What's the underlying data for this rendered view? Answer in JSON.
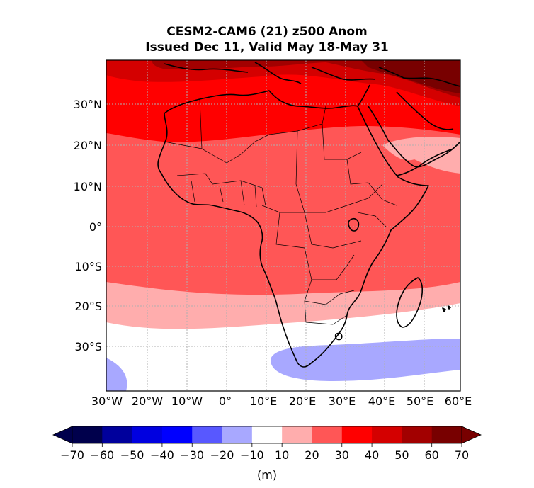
{
  "title_line1": "CESM2-CAM6 (21) z500 Anom",
  "title_line2": "Issued Dec 11, Valid May 18-May 31",
  "lat_labels": [
    "30°N",
    "20°N",
    "10°N",
    "0°",
    "10°S",
    "20°S",
    "30°S"
  ],
  "lon_labels": [
    "30°W",
    "20°W",
    "10°W",
    "0°",
    "10°E",
    "20°E",
    "30°E",
    "40°E",
    "50°E",
    "60°E"
  ],
  "colorbar": {
    "ticks": [
      "−70",
      "−60",
      "−50",
      "−40",
      "−30",
      "−20",
      "−10",
      "10",
      "20",
      "30",
      "40",
      "50",
      "60",
      "70"
    ],
    "colors": [
      "#00004c",
      "#00009c",
      "#0000e0",
      "#0000ff",
      "#5858ff",
      "#a8a8ff",
      "#ffffff",
      "#ffadad",
      "#ff5656",
      "#ff0000",
      "#d40000",
      "#a20000",
      "#780000"
    ],
    "under_color": "#00004c",
    "over_color": "#780000",
    "unit_label": "(m)"
  },
  "map_colors": {
    "c10": "#ffffff",
    "c20": "#ffadad",
    "c30": "#ff5656",
    "c40": "#ff0000",
    "c50": "#d40000",
    "c60": "#a20000",
    "c70": "#780000",
    "cneg20": "#a8a8ff"
  }
}
